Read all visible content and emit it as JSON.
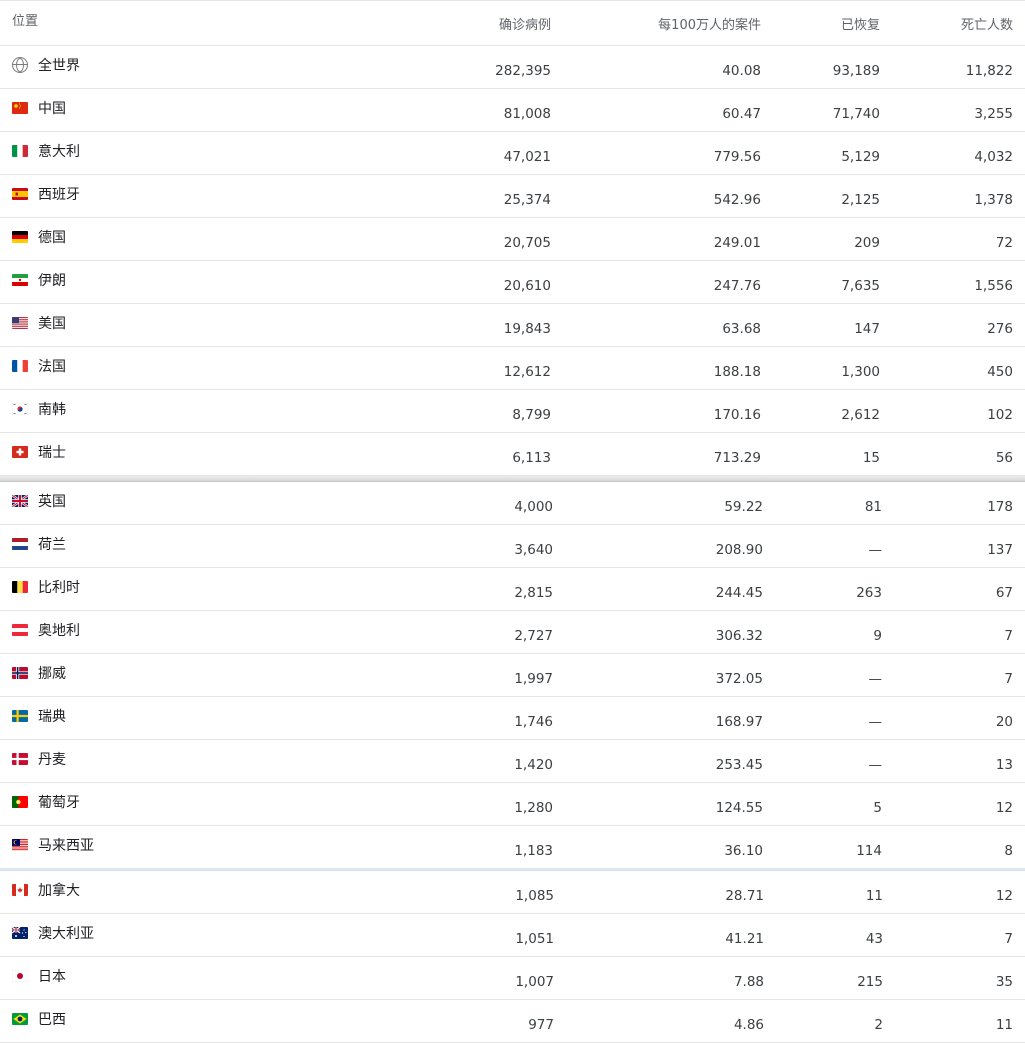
{
  "header": {
    "location": "位置",
    "confirmed": "确诊病例",
    "per_million": "每100万人的案件",
    "recovered": "已恢复",
    "deaths": "死亡人数"
  },
  "rows": [
    {
      "name": "全世界",
      "confirmed": "282,395",
      "per_million": "40.08",
      "recovered": "93,189",
      "deaths": "11,822",
      "icon": "globe-icon"
    },
    {
      "name": "中国",
      "confirmed": "81,008",
      "per_million": "60.47",
      "recovered": "71,740",
      "deaths": "3,255",
      "icon": "flag-china"
    },
    {
      "name": "意大利",
      "confirmed": "47,021",
      "per_million": "779.56",
      "recovered": "5,129",
      "deaths": "4,032",
      "icon": "flag-italy"
    },
    {
      "name": "西班牙",
      "confirmed": "25,374",
      "per_million": "542.96",
      "recovered": "2,125",
      "deaths": "1,378",
      "icon": "flag-spain"
    },
    {
      "name": "德国",
      "confirmed": "20,705",
      "per_million": "249.01",
      "recovered": "209",
      "deaths": "72",
      "icon": "flag-germany"
    },
    {
      "name": "伊朗",
      "confirmed": "20,610",
      "per_million": "247.76",
      "recovered": "7,635",
      "deaths": "1,556",
      "icon": "flag-iran"
    },
    {
      "name": "美国",
      "confirmed": "19,843",
      "per_million": "63.68",
      "recovered": "147",
      "deaths": "276",
      "icon": "flag-usa"
    },
    {
      "name": "法国",
      "confirmed": "12,612",
      "per_million": "188.18",
      "recovered": "1,300",
      "deaths": "450",
      "icon": "flag-france"
    },
    {
      "name": "南韩",
      "confirmed": "8,799",
      "per_million": "170.16",
      "recovered": "2,612",
      "deaths": "102",
      "icon": "flag-korea"
    },
    {
      "name": "瑞士",
      "confirmed": "6,113",
      "per_million": "713.29",
      "recovered": "15",
      "deaths": "56",
      "icon": "flag-switzerland"
    },
    {
      "name": "英国",
      "confirmed": "4,000",
      "per_million": "59.22",
      "recovered": "81",
      "deaths": "178",
      "icon": "flag-uk"
    },
    {
      "name": "荷兰",
      "confirmed": "3,640",
      "per_million": "208.90",
      "recovered": "—",
      "deaths": "137",
      "icon": "flag-netherlands"
    },
    {
      "name": "比利时",
      "confirmed": "2,815",
      "per_million": "244.45",
      "recovered": "263",
      "deaths": "67",
      "icon": "flag-belgium"
    },
    {
      "name": "奥地利",
      "confirmed": "2,727",
      "per_million": "306.32",
      "recovered": "9",
      "deaths": "7",
      "icon": "flag-austria"
    },
    {
      "name": "挪威",
      "confirmed": "1,997",
      "per_million": "372.05",
      "recovered": "—",
      "deaths": "7",
      "icon": "flag-norway"
    },
    {
      "name": "瑞典",
      "confirmed": "1,746",
      "per_million": "168.97",
      "recovered": "—",
      "deaths": "20",
      "icon": "flag-sweden"
    },
    {
      "name": "丹麦",
      "confirmed": "1,420",
      "per_million": "253.45",
      "recovered": "—",
      "deaths": "13",
      "icon": "flag-denmark"
    },
    {
      "name": "葡萄牙",
      "confirmed": "1,280",
      "per_million": "124.55",
      "recovered": "5",
      "deaths": "12",
      "icon": "flag-portugal"
    },
    {
      "name": "马来西亚",
      "confirmed": "1,183",
      "per_million": "36.10",
      "recovered": "114",
      "deaths": "8",
      "icon": "flag-malaysia"
    },
    {
      "name": "加拿大",
      "confirmed": "1,085",
      "per_million": "28.71",
      "recovered": "11",
      "deaths": "12",
      "icon": "flag-canada"
    },
    {
      "name": "澳大利亚",
      "confirmed": "1,051",
      "per_million": "41.21",
      "recovered": "43",
      "deaths": "7",
      "icon": "flag-australia"
    },
    {
      "name": "日本",
      "confirmed": "1,007",
      "per_million": "7.88",
      "recovered": "215",
      "deaths": "35",
      "icon": "flag-japan"
    },
    {
      "name": "巴西",
      "confirmed": "977",
      "per_million": "4.86",
      "recovered": "2",
      "deaths": "11",
      "icon": "flag-brazil"
    }
  ]
}
